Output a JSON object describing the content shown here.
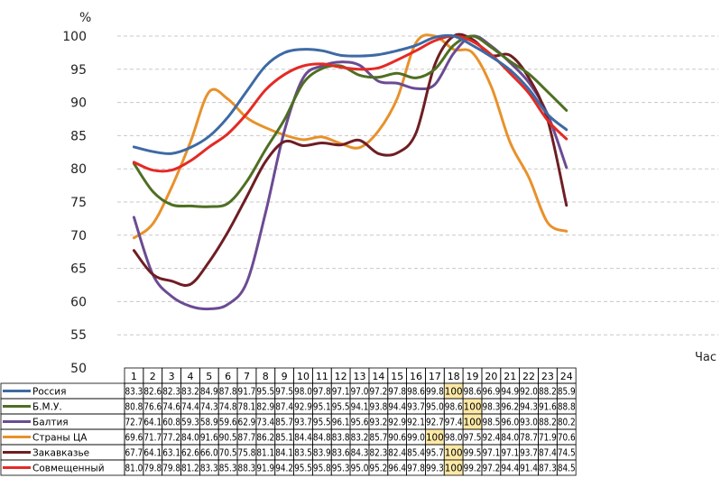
{
  "chart_data": {
    "type": "line",
    "ylabel": "%",
    "xlabel": "Час",
    "ylim": [
      50,
      100
    ],
    "yticks": [
      50,
      55,
      60,
      65,
      70,
      75,
      80,
      85,
      90,
      95,
      100
    ],
    "grid": true,
    "categories": [
      "1",
      "2",
      "3",
      "4",
      "5",
      "6",
      "7",
      "8",
      "9",
      "10",
      "11",
      "12",
      "13",
      "14",
      "15",
      "16",
      "17",
      "18",
      "19",
      "20",
      "21",
      "22",
      "23",
      "24"
    ],
    "series": [
      {
        "name": "Россия",
        "color": "#3d6aa4",
        "values": [
          83.3,
          82.6,
          82.3,
          83.2,
          84.9,
          87.8,
          91.7,
          95.5,
          97.5,
          98.0,
          97.8,
          97.1,
          97.0,
          97.2,
          97.8,
          98.6,
          99.8,
          100,
          98.6,
          96.9,
          94.9,
          92.0,
          88.2,
          85.9
        ],
        "labels": [
          "83.3",
          "82.6",
          "82.3",
          "83.2",
          "84.9",
          "87.8",
          "91.7",
          "95.5",
          "97.5",
          "98.0",
          "97.8",
          "97.1",
          "97.0",
          "97.2",
          "97.8",
          "98.6",
          "99.8",
          "100",
          "98.6",
          "96.9",
          "94.9",
          "92.0",
          "88.2",
          "85.9"
        ],
        "highlight": [
          18
        ]
      },
      {
        "name": "Б.М.У.",
        "color": "#4e6f22",
        "values": [
          80.8,
          76.6,
          74.6,
          74.4,
          74.3,
          74.8,
          78.1,
          82.9,
          87.4,
          92.9,
          95.1,
          95.5,
          94.1,
          93.8,
          94.4,
          93.7,
          95.0,
          98.6,
          100,
          98.3,
          96.2,
          94.3,
          91.6,
          88.8
        ],
        "labels": [
          "80.8",
          "76.6",
          "74.6",
          "74.4",
          "74.3",
          "74.8",
          "78.1",
          "82.9",
          "87.4",
          "92.9",
          "95.1",
          "95.5",
          "94.1",
          "93.8",
          "94.4",
          "93.7",
          "95.0",
          "98.6",
          "100",
          "98.3",
          "96.2",
          "94.3",
          "91.6",
          "88.8"
        ],
        "highlight": [
          19
        ]
      },
      {
        "name": "Балтия",
        "color": "#6b4b93",
        "values": [
          72.7,
          64.1,
          60.8,
          59.3,
          58.9,
          59.6,
          62.9,
          73.4,
          85.7,
          93.7,
          95.5,
          96.1,
          95.6,
          93.2,
          92.9,
          92.1,
          92.7,
          97.4,
          100,
          98.5,
          96.0,
          93.0,
          88.2,
          80.2
        ],
        "labels": [
          "72.7",
          "64.1",
          "60.8",
          "59.3",
          "58.9",
          "59.6",
          "62.9",
          "73.4",
          "85.7",
          "93.7",
          "95.5",
          "96.1",
          "95.6",
          "93.2",
          "92.9",
          "92.1",
          "92.7",
          "97.4",
          "100",
          "98.5",
          "96.0",
          "93.0",
          "88.2",
          "80.2"
        ],
        "highlight": [
          19
        ]
      },
      {
        "name": "Страны ЦА",
        "color": "#e8912b",
        "values": [
          69.6,
          71.7,
          77.2,
          84.0,
          91.6,
          90.5,
          87.7,
          86.2,
          85.1,
          84.4,
          84.8,
          83.8,
          83.2,
          85.7,
          90.6,
          99.0,
          100,
          98.0,
          97.5,
          92.4,
          84.0,
          78.7,
          71.9,
          70.6
        ],
        "labels": [
          "69.6",
          "71.7",
          "77.2",
          "84.0",
          "91.6",
          "90.5",
          "87.7",
          "86.2",
          "85.1",
          "84.4",
          "84.8",
          "83.8",
          "83.2",
          "85.7",
          "90.6",
          "99.0",
          "100",
          "98.0",
          "97.5",
          "92.4",
          "84.0",
          "78.7",
          "71.9",
          "70.6"
        ],
        "highlight": [
          17
        ]
      },
      {
        "name": "Закавказье",
        "color": "#6e1e23",
        "values": [
          67.7,
          64.1,
          63.1,
          62.6,
          66.0,
          70.5,
          75.8,
          81.1,
          84.1,
          83.5,
          83.9,
          83.6,
          84.3,
          82.3,
          82.4,
          85.4,
          95.7,
          100,
          99.5,
          97.1,
          97.1,
          93.7,
          87.4,
          74.5
        ],
        "labels": [
          "67.7",
          "64.1",
          "63.1",
          "62.6",
          "66.0",
          "70.5",
          "75.8",
          "81.1",
          "84.1",
          "83.5",
          "83.9",
          "83.6",
          "84.3",
          "82.3",
          "82.4",
          "85.4",
          "95.7",
          "100",
          "99.5",
          "97.1",
          "97.1",
          "93.7",
          "87.4",
          "74.5"
        ],
        "highlight": [
          18
        ]
      },
      {
        "name": "Совмещенный",
        "color": "#e42a25",
        "values": [
          81.0,
          79.8,
          79.8,
          81.2,
          83.3,
          85.3,
          88.3,
          91.9,
          94.2,
          95.5,
          95.8,
          95.3,
          95.0,
          95.2,
          96.4,
          97.8,
          99.3,
          100,
          99.2,
          97.2,
          94.4,
          91.4,
          87.3,
          84.5
        ],
        "labels": [
          "81.0",
          "79.8",
          "79.8",
          "81.2",
          "83.3",
          "85.3",
          "88.3",
          "91.9",
          "94.2",
          "95.5",
          "95.8",
          "95.3",
          "95.0",
          "95.2",
          "96.4",
          "97.8",
          "99.3",
          "100",
          "99.2",
          "97.2",
          "94.4",
          "91.4",
          "87.3",
          "84.5"
        ],
        "highlight": [
          18
        ]
      }
    ]
  }
}
